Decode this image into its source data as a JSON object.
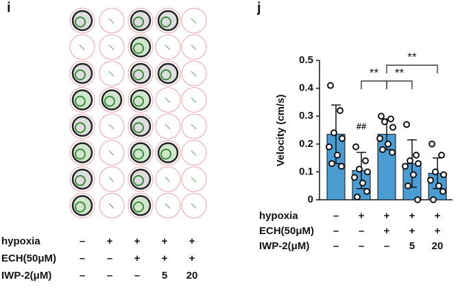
{
  "panel_i": {
    "label": "i",
    "conditions": [
      {
        "name": "hypoxia",
        "marks": [
          "–",
          "+",
          "+",
          "+",
          "+"
        ]
      },
      {
        "name": "ECH(50μM)",
        "marks": [
          "–",
          "–",
          "+",
          "+",
          "+"
        ]
      },
      {
        "name": "IWP-2(μM)",
        "marks": [
          "–",
          "–",
          "–",
          "5",
          "20"
        ]
      }
    ]
  },
  "chart_data": {
    "type": "bar",
    "label": "j",
    "ylabel": "Velocity (cm/s)",
    "categories": [
      null,
      null,
      null,
      null,
      null
    ],
    "values": [
      0.235,
      0.105,
      0.235,
      0.13,
      0.095
    ],
    "errors": [
      0.105,
      0.065,
      0.055,
      0.085,
      0.055
    ],
    "points": [
      [
        0.41,
        0.32,
        0.24,
        0.22,
        0.19,
        0.16,
        0.13,
        0.12
      ],
      [
        0.19,
        0.14,
        0.11,
        0.1,
        0.08,
        0.06,
        0.01,
        0.03
      ],
      [
        0.3,
        0.29,
        0.28,
        0.26,
        0.22,
        0.2,
        0.18,
        0.17
      ],
      [
        0.27,
        0.16,
        0.14,
        0.13,
        0.12,
        0.09,
        0.05,
        0.0
      ],
      [
        0.2,
        0.16,
        0.1,
        0.09,
        0.07,
        0.05,
        0.0,
        0.03
      ]
    ],
    "color": "#4a9cd3",
    "ylim": [
      0,
      0.5
    ],
    "yticks": [
      0,
      0.1,
      0.2,
      0.3,
      0.4,
      0.5
    ],
    "annotations": [
      "##",
      "**",
      "**",
      "**"
    ],
    "conditions": [
      {
        "name": "hypoxia",
        "marks": [
          "–",
          "+",
          "+",
          "+",
          "+"
        ]
      },
      {
        "name": "ECH(50μM)",
        "marks": [
          "–",
          "–",
          "+",
          "+",
          "+"
        ]
      },
      {
        "name": "IWP-2(μM)",
        "marks": [
          "–",
          "–",
          "–",
          "5",
          "20"
        ]
      }
    ]
  }
}
